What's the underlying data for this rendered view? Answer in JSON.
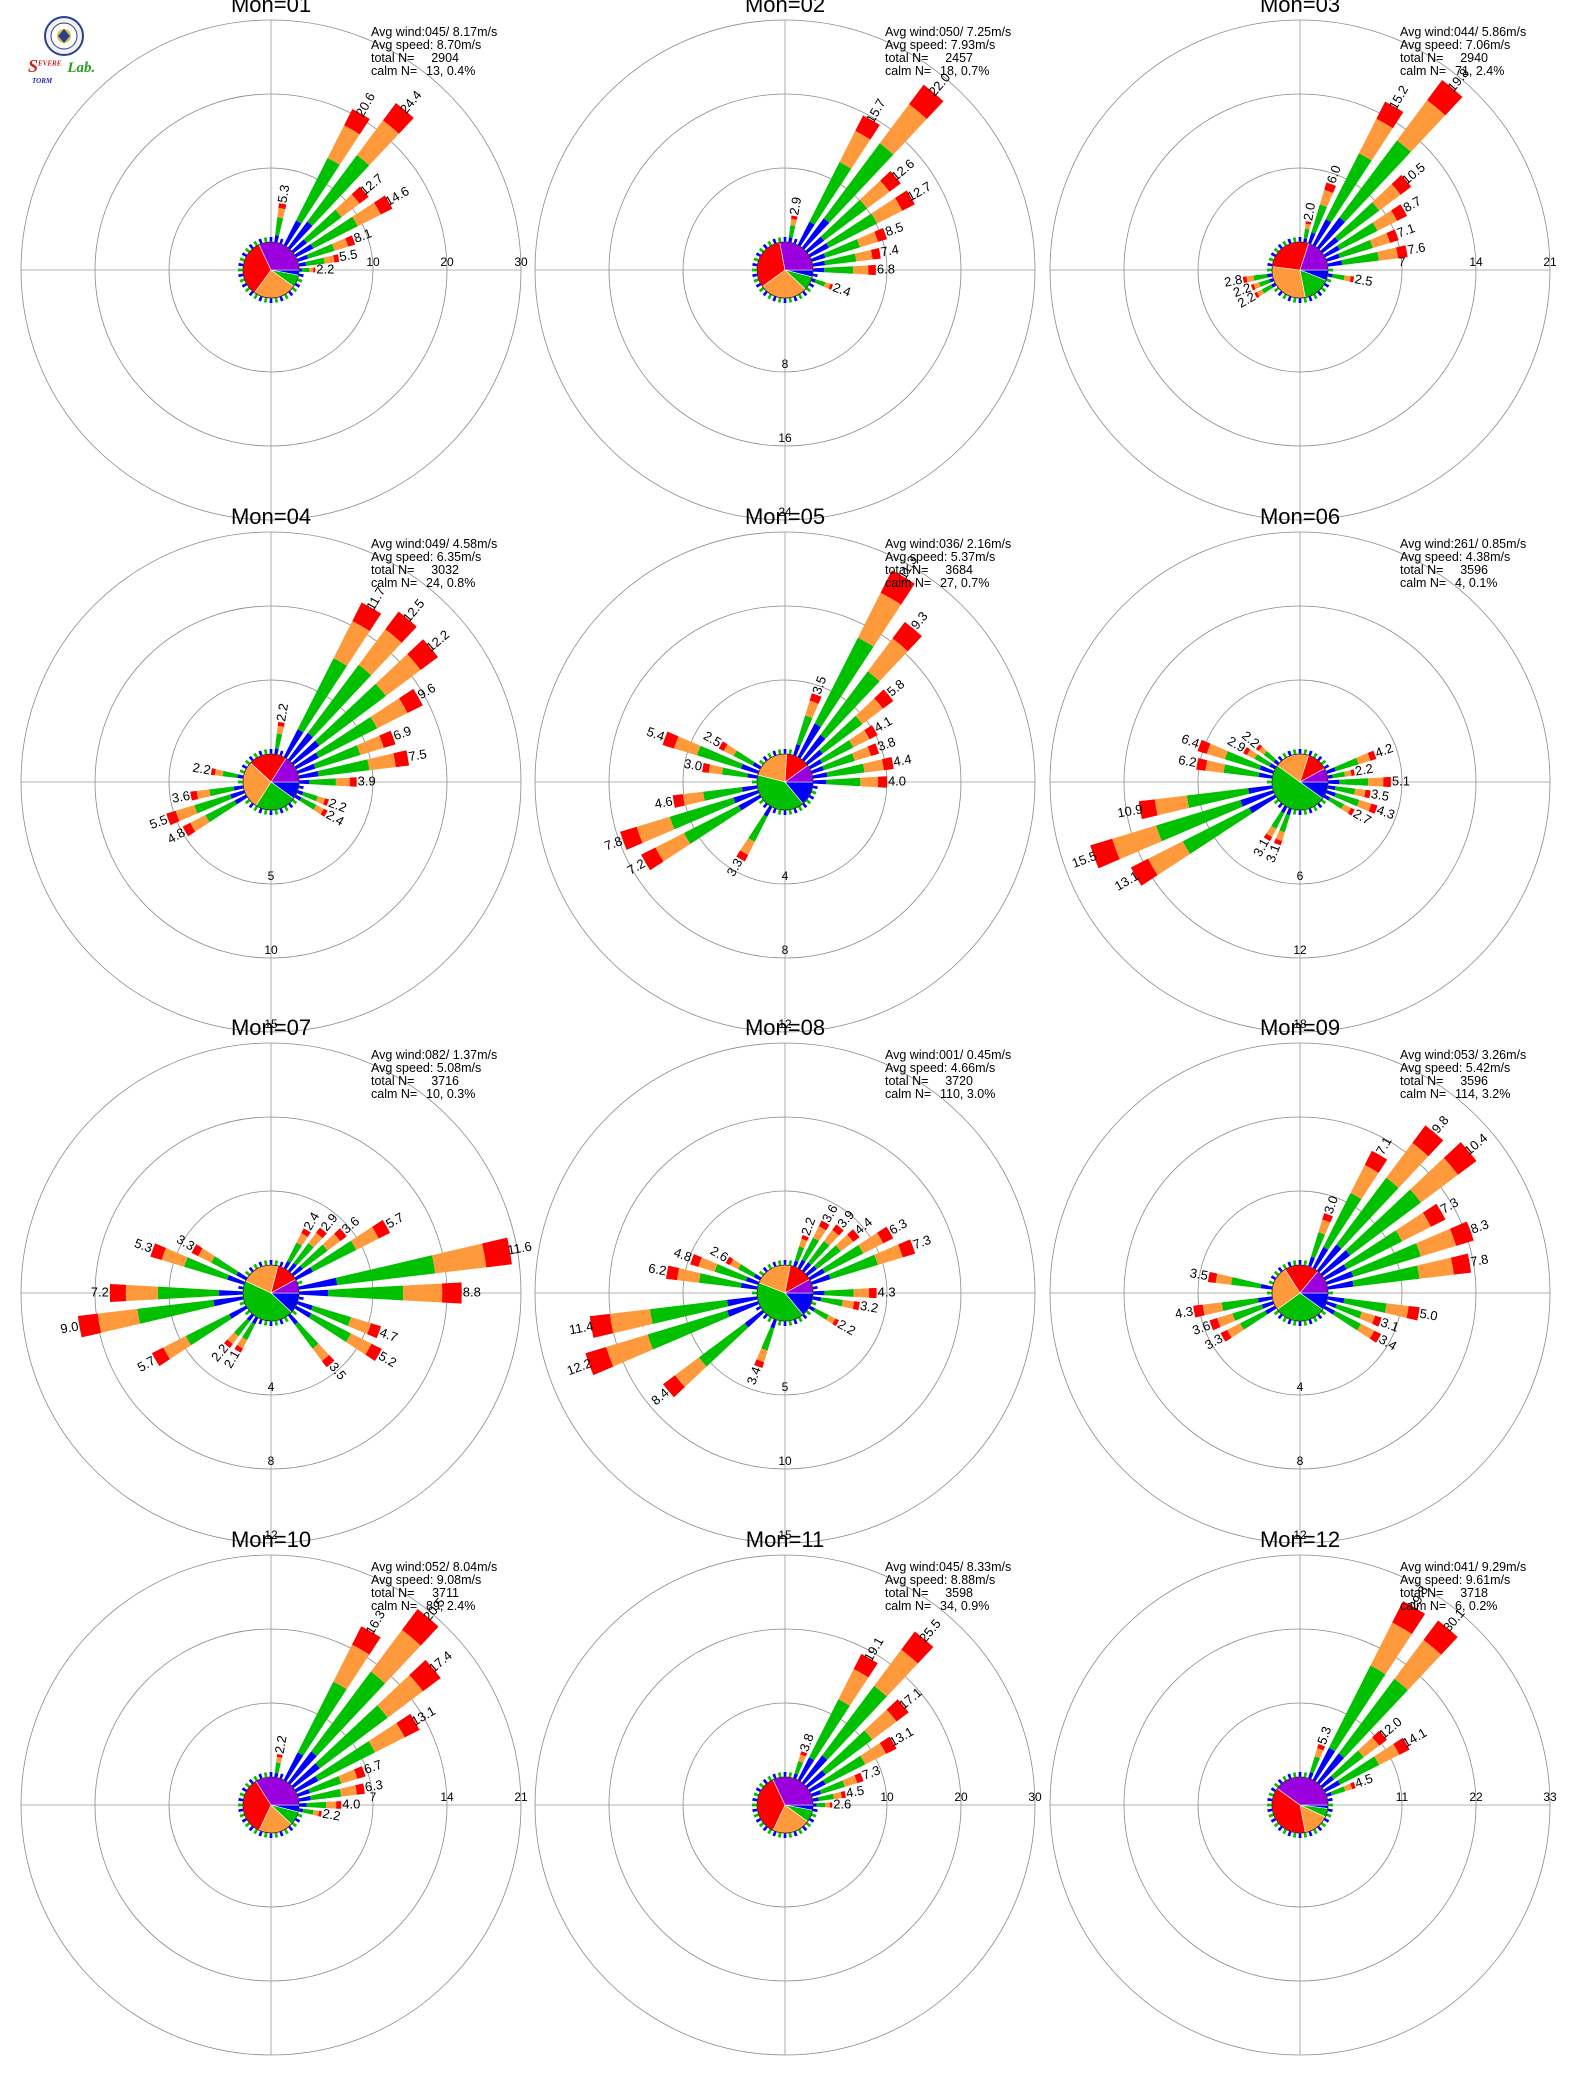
{
  "logo": {
    "text_s": "S",
    "text_evere": "EVERE",
    "text_torm": "TORM",
    "text_lab": "Lab.",
    "colors": {
      "s": "#d21e1e",
      "storm": "#2424b8",
      "lab": "#28a028"
    }
  },
  "speed_colors": [
    "#0000ff",
    "#00c000",
    "#ff9a3c",
    "#ff0000",
    "#9900dd"
  ],
  "chart_data": [
    {
      "type": "windrose",
      "title": "Mon=01",
      "stats": {
        "avg_wind": "Avg wind:045/ 8.17m/s",
        "avg_speed": "Avg speed: 8.70m/s",
        "total_label": "total N=",
        "total": "2904",
        "calm_label": "calm N=",
        "calm": "13,  0.4%"
      },
      "ring_labels": [
        "10",
        "20",
        "30"
      ],
      "rmax": 30,
      "ring_dir": 90,
      "pie": [
        0.03,
        0.07,
        0.25,
        0.33,
        0.32
      ],
      "bars": [
        {
          "dir": 10,
          "value": 5.3,
          "label": "5.3"
        },
        {
          "dir": 30,
          "value": 20.6,
          "label": "20.6"
        },
        {
          "dir": 40,
          "value": 24.4,
          "label": "24.4"
        },
        {
          "dir": 50,
          "value": 12.7,
          "label": "12.7"
        },
        {
          "dir": 60,
          "value": 14.6,
          "label": "14.6"
        },
        {
          "dir": 70,
          "value": 8.1,
          "label": "8.1"
        },
        {
          "dir": 80,
          "value": 5.5,
          "label": "5.5"
        },
        {
          "dir": 90,
          "value": 2.2,
          "label": "2.2"
        }
      ]
    },
    {
      "type": "windrose",
      "title": "Mon=02",
      "stats": {
        "avg_wind": "Avg wind:050/ 7.25m/s",
        "avg_speed": "Avg speed: 7.93m/s",
        "total_label": "total N=",
        "total": "2457",
        "calm_label": "calm N=",
        "calm": "18,  0.7%"
      },
      "ring_labels": [
        "8",
        "16",
        "24"
      ],
      "rmax": 24,
      "ring_dir": 180,
      "pie": [
        0.04,
        0.08,
        0.28,
        0.32,
        0.28
      ],
      "bars": [
        {
          "dir": 10,
          "value": 2.9,
          "label": "2.9"
        },
        {
          "dir": 30,
          "value": 15.7,
          "label": "15.7"
        },
        {
          "dir": 40,
          "value": 22.0,
          "label": "22.0"
        },
        {
          "dir": 50,
          "value": 12.6,
          "label": "12.6"
        },
        {
          "dir": 60,
          "value": 12.7,
          "label": "12.7"
        },
        {
          "dir": 70,
          "value": 8.5,
          "label": "8.5"
        },
        {
          "dir": 80,
          "value": 7.4,
          "label": "7.4"
        },
        {
          "dir": 90,
          "value": 6.8,
          "label": "6.8"
        },
        {
          "dir": 110,
          "value": 2.4,
          "label": "2.4"
        }
      ]
    },
    {
      "type": "windrose",
      "title": "Mon=03",
      "stats": {
        "avg_wind": "Avg wind:044/ 5.86m/s",
        "avg_speed": "Avg speed: 7.06m/s",
        "total_label": "total N=",
        "total": "2940",
        "calm_label": "calm N=",
        "calm": "71,  2.4%"
      },
      "ring_labels": [
        "7",
        "14",
        "21"
      ],
      "rmax": 21,
      "ring_dir": 90,
      "pie": [
        0.06,
        0.16,
        0.3,
        0.28,
        0.2
      ],
      "bars": [
        {
          "dir": 10,
          "value": 2.0,
          "label": "2.0"
        },
        {
          "dir": 20,
          "value": 6.0,
          "label": "6.0"
        },
        {
          "dir": 30,
          "value": 15.2,
          "label": "15.2"
        },
        {
          "dir": 40,
          "value": 19.8,
          "label": "19.8"
        },
        {
          "dir": 50,
          "value": 10.5,
          "label": "10.5"
        },
        {
          "dir": 60,
          "value": 8.7,
          "label": "8.7"
        },
        {
          "dir": 70,
          "value": 7.1,
          "label": "7.1"
        },
        {
          "dir": 80,
          "value": 7.6,
          "label": "7.6"
        },
        {
          "dir": 100,
          "value": 2.5,
          "label": "2.5"
        },
        {
          "dir": 240,
          "value": 2.2,
          "label": "2.2"
        },
        {
          "dir": 250,
          "value": 2.2,
          "label": "2.2"
        },
        {
          "dir": 260,
          "value": 2.8,
          "label": "2.8"
        }
      ]
    },
    {
      "type": "windrose",
      "title": "Mon=04",
      "stats": {
        "avg_wind": "Avg wind:049/ 4.58m/s",
        "avg_speed": "Avg speed: 6.35m/s",
        "total_label": "total N=",
        "total": "3032",
        "calm_label": "calm N=",
        "calm": "24,  0.8%"
      },
      "ring_labels": [
        "5",
        "10",
        "15"
      ],
      "rmax": 15,
      "ring_dir": 180,
      "pie": [
        0.1,
        0.24,
        0.28,
        0.22,
        0.16
      ],
      "bars": [
        {
          "dir": 10,
          "value": 2.2,
          "label": "2.2"
        },
        {
          "dir": 30,
          "value": 11.7,
          "label": "11.7"
        },
        {
          "dir": 40,
          "value": 12.5,
          "label": "12.5"
        },
        {
          "dir": 50,
          "value": 12.2,
          "label": "12.2"
        },
        {
          "dir": 60,
          "value": 9.6,
          "label": "9.6"
        },
        {
          "dir": 70,
          "value": 6.9,
          "label": "6.9"
        },
        {
          "dir": 80,
          "value": 7.5,
          "label": "7.5"
        },
        {
          "dir": 90,
          "value": 3.9,
          "label": "3.9"
        },
        {
          "dir": 110,
          "value": 2.2,
          "label": "2.2"
        },
        {
          "dir": 120,
          "value": 2.4,
          "label": "2.4"
        },
        {
          "dir": 240,
          "value": 4.8,
          "label": "4.8"
        },
        {
          "dir": 250,
          "value": 5.5,
          "label": "5.5"
        },
        {
          "dir": 260,
          "value": 3.6,
          "label": "3.6"
        },
        {
          "dir": 280,
          "value": 2.2,
          "label": "2.2"
        }
      ]
    },
    {
      "type": "windrose",
      "title": "Mon=05",
      "stats": {
        "avg_wind": "Avg wind:036/ 2.16m/s",
        "avg_speed": "Avg speed: 5.37m/s",
        "total_label": "total N=",
        "total": "3684",
        "calm_label": "calm N=",
        "calm": "27,  0.7%"
      },
      "ring_labels": [
        "4",
        "8",
        "12"
      ],
      "rmax": 12,
      "ring_dir": 180,
      "pie": [
        0.14,
        0.4,
        0.22,
        0.14,
        0.1
      ],
      "bars": [
        {
          "dir": 20,
          "value": 3.5,
          "label": "3.5"
        },
        {
          "dir": 30,
          "value": 11.3,
          "label": "11.3"
        },
        {
          "dir": 40,
          "value": 9.3,
          "label": "9.3"
        },
        {
          "dir": 50,
          "value": 5.8,
          "label": "5.8"
        },
        {
          "dir": 60,
          "value": 4.1,
          "label": "4.1"
        },
        {
          "dir": 70,
          "value": 3.8,
          "label": "3.8"
        },
        {
          "dir": 80,
          "value": 4.4,
          "label": "4.4"
        },
        {
          "dir": 90,
          "value": 4.0,
          "label": "4.0"
        },
        {
          "dir": 210,
          "value": 3.3,
          "label": "3.3"
        },
        {
          "dir": 240,
          "value": 7.2,
          "label": "7.2"
        },
        {
          "dir": 250,
          "value": 7.8,
          "label": "7.8"
        },
        {
          "dir": 260,
          "value": 4.6,
          "label": "4.6"
        },
        {
          "dir": 280,
          "value": 3.0,
          "label": "3.0"
        },
        {
          "dir": 290,
          "value": 5.4,
          "label": "5.4"
        },
        {
          "dir": 300,
          "value": 2.5,
          "label": "2.5"
        }
      ]
    },
    {
      "type": "windrose",
      "title": "Mon=06",
      "stats": {
        "avg_wind": "Avg wind:261/ 0.85m/s",
        "avg_speed": "Avg speed: 4.38m/s",
        "total_label": "total N=",
        "total": "3596",
        "calm_label": "calm N=",
        "calm": "4,  0.1%"
      },
      "ring_labels": [
        "6",
        "12",
        "18"
      ],
      "rmax": 18,
      "ring_dir": 180,
      "pie": [
        0.1,
        0.5,
        0.2,
        0.12,
        0.08
      ],
      "bars": [
        {
          "dir": 70,
          "value": 4.2,
          "label": "4.2"
        },
        {
          "dir": 80,
          "value": 2.2,
          "label": "2.2"
        },
        {
          "dir": 90,
          "value": 5.1,
          "label": "5.1"
        },
        {
          "dir": 100,
          "value": 3.5,
          "label": "3.5"
        },
        {
          "dir": 110,
          "value": 4.3,
          "label": "4.3"
        },
        {
          "dir": 120,
          "value": 2.7,
          "label": "2.7"
        },
        {
          "dir": 200,
          "value": 3.1,
          "label": "3.1"
        },
        {
          "dir": 210,
          "value": 3.1,
          "label": "3.1"
        },
        {
          "dir": 240,
          "value": 13.1,
          "label": "13.1"
        },
        {
          "dir": 250,
          "value": 15.5,
          "label": "15.5"
        },
        {
          "dir": 260,
          "value": 10.9,
          "label": "10.9"
        },
        {
          "dir": 280,
          "value": 6.2,
          "label": "6.2"
        },
        {
          "dir": 290,
          "value": 6.4,
          "label": "6.4"
        },
        {
          "dir": 300,
          "value": 2.9,
          "label": "2.9"
        },
        {
          "dir": 310,
          "value": 2.2,
          "label": "2.2"
        }
      ]
    },
    {
      "type": "windrose",
      "title": "Mon=07",
      "stats": {
        "avg_wind": "Avg wind:082/ 1.37m/s",
        "avg_speed": "Avg speed: 5.08m/s",
        "total_label": "total N=",
        "total": "3716",
        "calm_label": "calm N=",
        "calm": "10,  0.3%"
      },
      "ring_labels": [
        "4",
        "8",
        "12"
      ],
      "rmax": 12,
      "ring_dir": 180,
      "pie": [
        0.12,
        0.45,
        0.22,
        0.13,
        0.08
      ],
      "bars": [
        {
          "dir": 30,
          "value": 2.4,
          "label": "2.4"
        },
        {
          "dir": 40,
          "value": 2.9,
          "label": "2.9"
        },
        {
          "dir": 50,
          "value": 3.6,
          "label": "3.6"
        },
        {
          "dir": 60,
          "value": 5.7,
          "label": "5.7"
        },
        {
          "dir": 80,
          "value": 11.6,
          "label": "11.6"
        },
        {
          "dir": 90,
          "value": 8.8,
          "label": "8.8"
        },
        {
          "dir": 110,
          "value": 4.7,
          "label": "4.7"
        },
        {
          "dir": 120,
          "value": 5.2,
          "label": "5.2"
        },
        {
          "dir": 140,
          "value": 3.5,
          "label": "3.5"
        },
        {
          "dir": 210,
          "value": 2.1,
          "label": "2.1"
        },
        {
          "dir": 220,
          "value": 2.2,
          "label": "2.2"
        },
        {
          "dir": 240,
          "value": 5.7,
          "label": "5.7"
        },
        {
          "dir": 260,
          "value": 9.0,
          "label": "9.0"
        },
        {
          "dir": 270,
          "value": 7.2,
          "label": "7.2"
        },
        {
          "dir": 290,
          "value": 5.3,
          "label": "5.3"
        },
        {
          "dir": 300,
          "value": 3.3,
          "label": "3.3"
        }
      ]
    },
    {
      "type": "windrose",
      "title": "Mon=08",
      "stats": {
        "avg_wind": "Avg wind:001/ 0.45m/s",
        "avg_speed": "Avg speed: 4.66m/s",
        "total_label": "total N=",
        "total": "3720",
        "calm_label": "calm N=",
        "calm": "110,  3.0%"
      },
      "ring_labels": [
        "5",
        "10",
        "15"
      ],
      "rmax": 15,
      "ring_dir": 180,
      "pie": [
        0.14,
        0.42,
        0.22,
        0.14,
        0.08
      ],
      "bars": [
        {
          "dir": 20,
          "value": 2.2,
          "label": "2.2"
        },
        {
          "dir": 30,
          "value": 3.6,
          "label": "3.6"
        },
        {
          "dir": 40,
          "value": 3.9,
          "label": "3.9"
        },
        {
          "dir": 50,
          "value": 4.4,
          "label": "4.4"
        },
        {
          "dir": 60,
          "value": 6.3,
          "label": "6.3"
        },
        {
          "dir": 70,
          "value": 7.3,
          "label": "7.3"
        },
        {
          "dir": 90,
          "value": 4.3,
          "label": "4.3"
        },
        {
          "dir": 100,
          "value": 3.2,
          "label": "3.2"
        },
        {
          "dir": 120,
          "value": 2.2,
          "label": "2.2"
        },
        {
          "dir": 200,
          "value": 3.4,
          "label": "3.4"
        },
        {
          "dir": 230,
          "value": 8.4,
          "label": "8.4"
        },
        {
          "dir": 250,
          "value": 12.2,
          "label": "12.2"
        },
        {
          "dir": 260,
          "value": 11.4,
          "label": "11.4"
        },
        {
          "dir": 280,
          "value": 6.2,
          "label": "6.2"
        },
        {
          "dir": 290,
          "value": 4.8,
          "label": "4.8"
        },
        {
          "dir": 300,
          "value": 2.6,
          "label": "2.6"
        }
      ]
    },
    {
      "type": "windrose",
      "title": "Mon=09",
      "stats": {
        "avg_wind": "Avg wind:053/ 3.26m/s",
        "avg_speed": "Avg speed: 5.42m/s",
        "total_label": "total N=",
        "total": "3596",
        "calm_label": "calm N=",
        "calm": "114,  3.2%"
      },
      "ring_labels": [
        "4",
        "8",
        "12"
      ],
      "rmax": 12,
      "ring_dir": 180,
      "pie": [
        0.1,
        0.3,
        0.26,
        0.2,
        0.14
      ],
      "bars": [
        {
          "dir": 20,
          "value": 3.0,
          "label": "3.0"
        },
        {
          "dir": 30,
          "value": 7.1,
          "label": "7.1"
        },
        {
          "dir": 40,
          "value": 9.8,
          "label": "9.8"
        },
        {
          "dir": 50,
          "value": 10.4,
          "label": "10.4"
        },
        {
          "dir": 60,
          "value": 7.3,
          "label": "7.3"
        },
        {
          "dir": 70,
          "value": 8.3,
          "label": "8.3"
        },
        {
          "dir": 80,
          "value": 7.8,
          "label": "7.8"
        },
        {
          "dir": 100,
          "value": 5.0,
          "label": "5.0"
        },
        {
          "dir": 110,
          "value": 3.1,
          "label": "3.1"
        },
        {
          "dir": 120,
          "value": 3.4,
          "label": "3.4"
        },
        {
          "dir": 240,
          "value": 3.3,
          "label": "3.3"
        },
        {
          "dir": 250,
          "value": 3.6,
          "label": "3.6"
        },
        {
          "dir": 260,
          "value": 4.3,
          "label": "4.3"
        },
        {
          "dir": 280,
          "value": 3.5,
          "label": "3.5"
        }
      ]
    },
    {
      "type": "windrose",
      "title": "Mon=10",
      "stats": {
        "avg_wind": "Avg wind:052/ 8.04m/s",
        "avg_speed": "Avg speed: 9.08m/s",
        "total_label": "total N=",
        "total": "3711",
        "calm_label": "calm N=",
        "calm": "89,  2.4%"
      },
      "ring_labels": [
        "7",
        "14",
        "21"
      ],
      "rmax": 21,
      "ring_dir": 90,
      "pie": [
        0.04,
        0.08,
        0.2,
        0.34,
        0.34
      ],
      "bars": [
        {
          "dir": 10,
          "value": 2.2,
          "label": "2.2"
        },
        {
          "dir": 30,
          "value": 16.3,
          "label": "16.3"
        },
        {
          "dir": 40,
          "value": 20.5,
          "label": "20.5"
        },
        {
          "dir": 50,
          "value": 17.4,
          "label": "17.4"
        },
        {
          "dir": 60,
          "value": 13.1,
          "label": "13.1"
        },
        {
          "dir": 70,
          "value": 6.7,
          "label": "6.7"
        },
        {
          "dir": 80,
          "value": 6.3,
          "label": "6.3"
        },
        {
          "dir": 90,
          "value": 4.0,
          "label": "4.0"
        },
        {
          "dir": 100,
          "value": 2.2,
          "label": "2.2"
        }
      ]
    },
    {
      "type": "windrose",
      "title": "Mon=11",
      "stats": {
        "avg_wind": "Avg wind:045/ 8.33m/s",
        "avg_speed": "Avg speed: 8.88m/s",
        "total_label": "total N=",
        "total": "3598",
        "calm_label": "calm N=",
        "calm": "34,  0.9%"
      },
      "ring_labels": [
        "10",
        "20",
        "30"
      ],
      "rmax": 30,
      "ring_dir": 90,
      "pie": [
        0.03,
        0.07,
        0.22,
        0.36,
        0.32
      ],
      "bars": [
        {
          "dir": 20,
          "value": 3.8,
          "label": "3.8"
        },
        {
          "dir": 30,
          "value": 19.1,
          "label": "19.1"
        },
        {
          "dir": 40,
          "value": 25.5,
          "label": "25.5"
        },
        {
          "dir": 50,
          "value": 17.1,
          "label": "17.1"
        },
        {
          "dir": 60,
          "value": 13.1,
          "label": "13.1"
        },
        {
          "dir": 70,
          "value": 7.3,
          "label": "7.3"
        },
        {
          "dir": 80,
          "value": 4.5,
          "label": "4.5"
        },
        {
          "dir": 90,
          "value": 2.6,
          "label": "2.6"
        }
      ]
    },
    {
      "type": "windrose",
      "title": "Mon=12",
      "stats": {
        "avg_wind": "Avg wind:041/ 9.29m/s",
        "avg_speed": "Avg speed: 9.61m/s",
        "total_label": "total N=",
        "total": "3718",
        "calm_label": "calm N=",
        "calm": "6,  0.2%"
      },
      "ring_labels": [
        "11",
        "22",
        "33"
      ],
      "rmax": 33,
      "ring_dir": 90,
      "pie": [
        0.02,
        0.05,
        0.15,
        0.38,
        0.4
      ],
      "bars": [
        {
          "dir": 20,
          "value": 5.3,
          "label": "5.3"
        },
        {
          "dir": 30,
          "value": 29.8,
          "label": "29.8"
        },
        {
          "dir": 40,
          "value": 30.1,
          "label": "30.1"
        },
        {
          "dir": 50,
          "value": 12.0,
          "label": "12.0"
        },
        {
          "dir": 60,
          "value": 14.1,
          "label": "14.1"
        },
        {
          "dir": 70,
          "value": 4.5,
          "label": "4.5"
        }
      ]
    }
  ]
}
